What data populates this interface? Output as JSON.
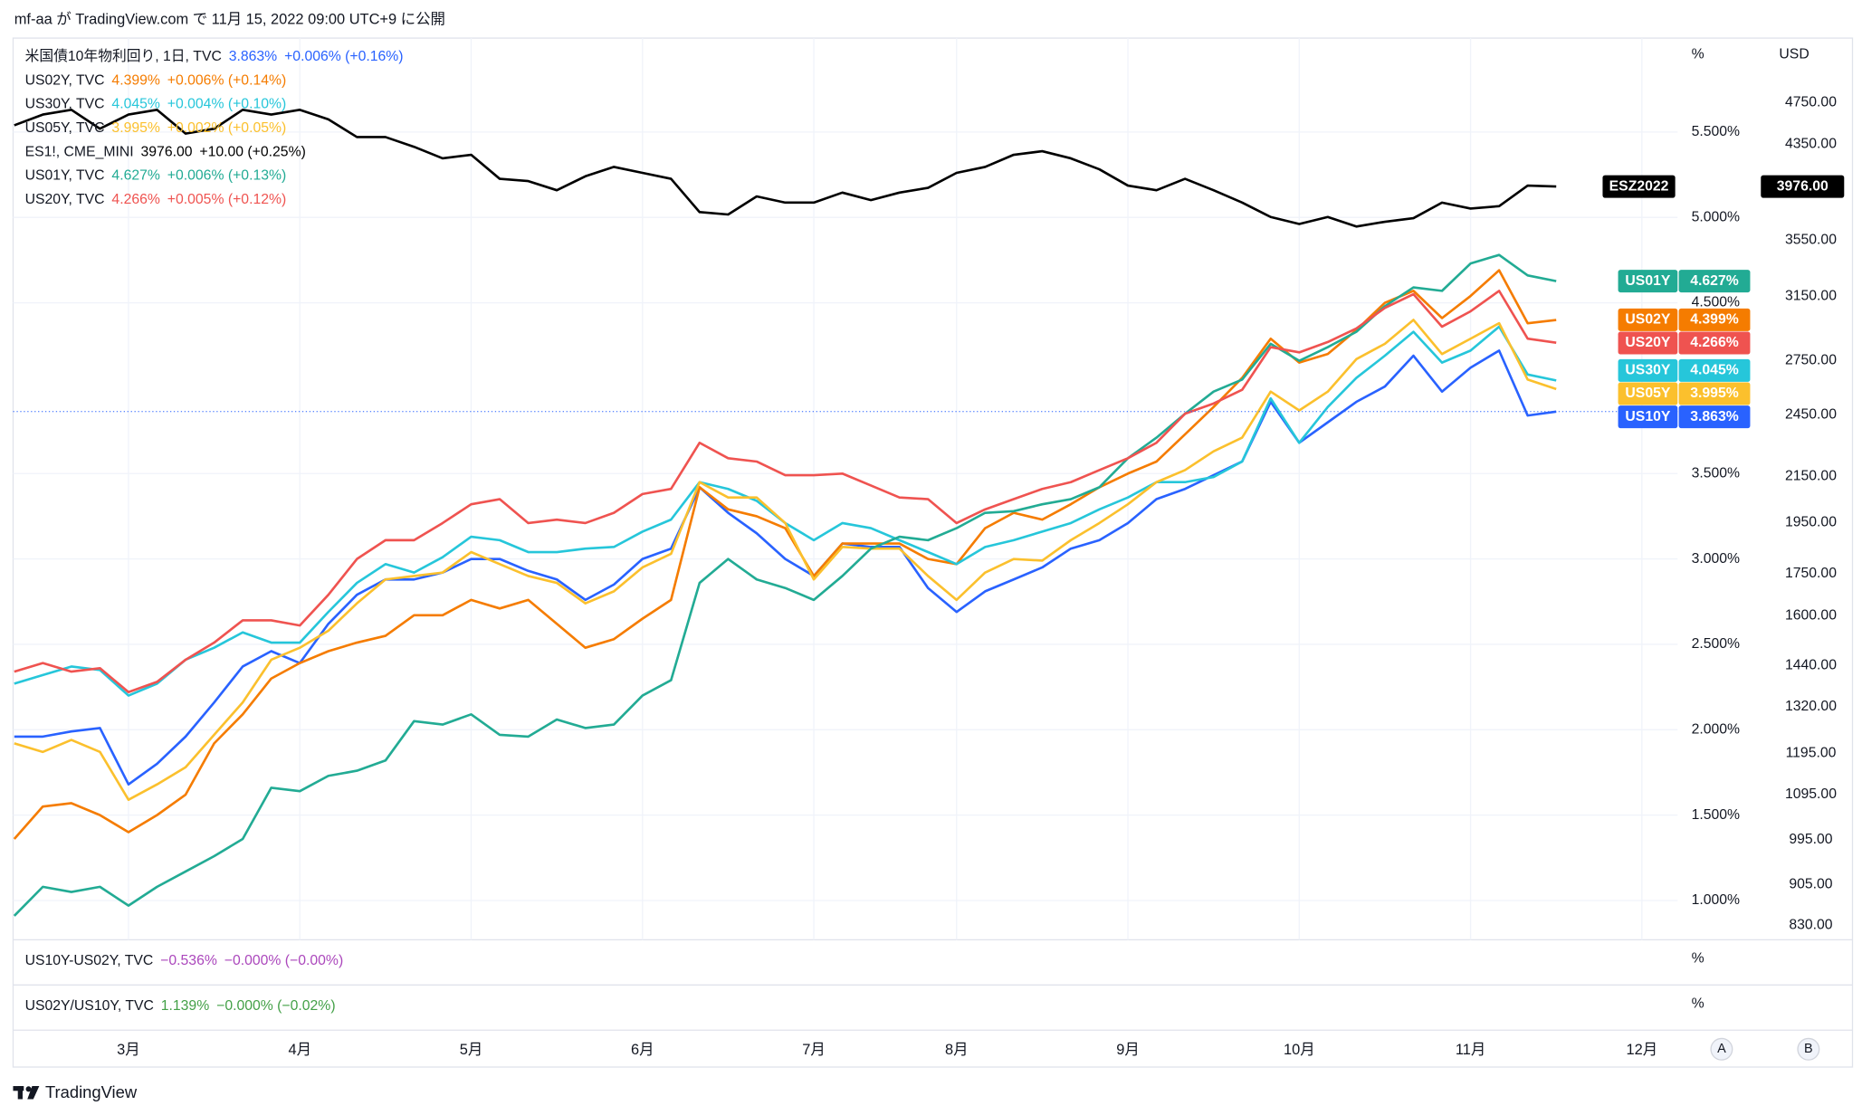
{
  "header": {
    "text": "mf-aa が TradingView.com で 11月 15, 2022 09:00 UTC+9 に公開"
  },
  "footer": {
    "brand": "TradingView"
  },
  "controls": {
    "auto": "A",
    "b": "B"
  },
  "chart_data": {
    "type": "line",
    "categories": [
      null,
      null,
      null,
      null,
      "3月",
      null,
      null,
      null,
      null,
      null,
      "4月",
      null,
      null,
      null,
      null,
      null,
      "5月",
      null,
      null,
      null,
      null,
      null,
      "6月",
      null,
      null,
      null,
      null,
      null,
      "7月",
      null,
      null,
      null,
      null,
      "8月",
      null,
      null,
      null,
      null,
      null,
      "9月",
      null,
      null,
      null,
      null,
      null,
      "10月",
      null,
      null,
      null,
      null,
      null,
      "11月",
      null,
      null,
      null,
      null,
      null,
      "12月"
    ],
    "series": [
      {
        "name": "US10Y",
        "legend": "米国債10年物利回り, 1日, TVC",
        "last": "3.863%",
        "change": "+0.006% (+0.16%)",
        "color": "#2962ff",
        "values": [
          1.96,
          1.96,
          1.99,
          2.01,
          1.68,
          1.8,
          1.96,
          2.16,
          2.37,
          2.46,
          2.39,
          2.62,
          2.79,
          2.88,
          2.88,
          2.92,
          3.0,
          3.0,
          2.93,
          2.88,
          2.76,
          2.85,
          3.0,
          3.06,
          3.42,
          3.27,
          3.15,
          3.0,
          2.9,
          3.09,
          3.07,
          3.07,
          2.83,
          2.69,
          2.81,
          2.88,
          2.95,
          3.06,
          3.11,
          3.21,
          3.35,
          3.41,
          3.49,
          3.57,
          3.92,
          3.68,
          3.8,
          3.92,
          4.01,
          4.19,
          3.98,
          4.12,
          4.22,
          3.84,
          3.863,
          null,
          null,
          null
        ]
      },
      {
        "name": "US02Y",
        "legend": "US02Y, TVC",
        "last": "4.399%",
        "change": "+0.006% (+0.14%)",
        "color": "#f57c00",
        "values": [
          1.36,
          1.55,
          1.57,
          1.5,
          1.4,
          1.5,
          1.62,
          1.92,
          2.09,
          2.3,
          2.39,
          2.46,
          2.51,
          2.55,
          2.67,
          2.67,
          2.76,
          2.71,
          2.76,
          2.62,
          2.48,
          2.53,
          2.65,
          2.76,
          3.42,
          3.29,
          3.25,
          3.18,
          2.9,
          3.09,
          3.09,
          3.09,
          3.0,
          2.97,
          3.18,
          3.27,
          3.23,
          3.32,
          3.42,
          3.5,
          3.57,
          3.73,
          3.89,
          4.06,
          4.29,
          4.15,
          4.2,
          4.34,
          4.5,
          4.57,
          4.41,
          4.54,
          4.69,
          4.38,
          4.399,
          null,
          null,
          null
        ]
      },
      {
        "name": "US30Y",
        "legend": "US30Y, TVC",
        "last": "4.045%",
        "change": "+0.004% (+0.10%)",
        "color": "#26c6da",
        "values": [
          2.27,
          2.32,
          2.37,
          2.35,
          2.2,
          2.27,
          2.41,
          2.48,
          2.57,
          2.51,
          2.51,
          2.69,
          2.86,
          2.97,
          2.92,
          3.01,
          3.13,
          3.11,
          3.04,
          3.04,
          3.06,
          3.07,
          3.16,
          3.23,
          3.45,
          3.41,
          3.34,
          3.21,
          3.11,
          3.21,
          3.18,
          3.11,
          3.04,
          2.97,
          3.07,
          3.11,
          3.16,
          3.21,
          3.29,
          3.36,
          3.45,
          3.45,
          3.48,
          3.57,
          3.94,
          3.68,
          3.89,
          4.06,
          4.19,
          4.33,
          4.15,
          4.22,
          4.36,
          4.08,
          4.045,
          null,
          null,
          null
        ]
      },
      {
        "name": "US05Y",
        "legend": "US05Y, TVC",
        "last": "3.995%",
        "change": "+0.002% (+0.05%)",
        "color": "#fbc02d",
        "values": [
          1.92,
          1.87,
          1.94,
          1.87,
          1.59,
          1.68,
          1.78,
          1.97,
          2.16,
          2.41,
          2.48,
          2.58,
          2.74,
          2.88,
          2.9,
          2.92,
          3.04,
          2.97,
          2.9,
          2.86,
          2.74,
          2.81,
          2.95,
          3.03,
          3.45,
          3.36,
          3.36,
          3.21,
          2.88,
          3.07,
          3.06,
          3.06,
          2.9,
          2.76,
          2.92,
          3.0,
          2.99,
          3.11,
          3.21,
          3.32,
          3.45,
          3.52,
          3.63,
          3.71,
          3.98,
          3.87,
          3.98,
          4.17,
          4.26,
          4.4,
          4.2,
          4.29,
          4.38,
          4.05,
          3.995,
          null,
          null,
          null
        ]
      },
      {
        "name": "ESZ2022",
        "legend": "ES1!, CME_MINI",
        "last": "3976.00",
        "change": "+10.00 (+0.25%)",
        "color": "#000000",
        "axis": "y2",
        "values": [
          4528,
          4632,
          4678,
          4495,
          4632,
          4678,
          4448,
          4495,
          4678,
          4632,
          4678,
          4585,
          4416,
          4416,
          4326,
          4221,
          4253,
          4042,
          4022,
          3945,
          4063,
          4145,
          4093,
          4042,
          3766,
          3747,
          3894,
          3843,
          3843,
          3925,
          3863,
          3925,
          3965,
          4093,
          4145,
          4253,
          4285,
          4221,
          4124,
          3984,
          3945,
          4042,
          3945,
          3843,
          3727,
          3672,
          3727,
          3653,
          3690,
          3718,
          3843,
          3795,
          3814,
          3984,
          3976,
          null,
          null,
          null
        ]
      },
      {
        "name": "US01Y",
        "legend": "US01Y, TVC",
        "last": "4.627%",
        "change": "+0.006% (+0.13%)",
        "color": "#22ab94",
        "values": [
          0.91,
          1.08,
          1.05,
          1.08,
          0.97,
          1.08,
          1.17,
          1.26,
          1.36,
          1.66,
          1.64,
          1.73,
          1.76,
          1.82,
          2.05,
          2.03,
          2.09,
          1.97,
          1.96,
          2.06,
          2.01,
          2.03,
          2.2,
          2.29,
          2.86,
          3.0,
          2.88,
          2.83,
          2.76,
          2.9,
          3.06,
          3.13,
          3.11,
          3.18,
          3.27,
          3.28,
          3.32,
          3.35,
          3.42,
          3.59,
          3.71,
          3.85,
          3.98,
          4.05,
          4.26,
          4.16,
          4.24,
          4.33,
          4.48,
          4.59,
          4.57,
          4.73,
          4.78,
          4.66,
          4.627,
          null,
          null,
          null
        ]
      },
      {
        "name": "US20Y",
        "legend": "US20Y, TVC",
        "last": "4.266%",
        "change": "+0.005% (+0.12%)",
        "color": "#ef5350",
        "values": [
          2.34,
          2.39,
          2.34,
          2.36,
          2.22,
          2.28,
          2.41,
          2.51,
          2.64,
          2.64,
          2.61,
          2.79,
          3.0,
          3.11,
          3.11,
          3.21,
          3.32,
          3.35,
          3.21,
          3.23,
          3.21,
          3.27,
          3.38,
          3.41,
          3.68,
          3.59,
          3.57,
          3.49,
          3.49,
          3.5,
          3.43,
          3.36,
          3.35,
          3.21,
          3.29,
          3.35,
          3.41,
          3.45,
          3.52,
          3.59,
          3.68,
          3.85,
          3.91,
          3.99,
          4.24,
          4.21,
          4.27,
          4.35,
          4.47,
          4.55,
          4.36,
          4.45,
          4.57,
          4.29,
          4.266,
          null,
          null,
          null
        ]
      }
    ],
    "y_unit": "%",
    "ylim": [
      0.77,
      6.05
    ],
    "yticks": [
      {
        "value": 5.5,
        "label": "5.500%"
      },
      {
        "value": 5,
        "label": "5.000%"
      },
      {
        "value": 4.5,
        "label": "4.500%"
      },
      {
        "value": 3.5,
        "label": "3.500%"
      },
      {
        "value": 3,
        "label": "3.000%"
      },
      {
        "value": 2.5,
        "label": "2.500%"
      },
      {
        "value": 2,
        "label": "2.000%"
      },
      {
        "value": 1.5,
        "label": "1.500%"
      },
      {
        "value": 1,
        "label": "1.000%"
      }
    ],
    "y2_unit": "USD",
    "y2_log": true,
    "y2lim": [
      805,
      5447
    ],
    "y2ticks": [
      {
        "value": 4750,
        "label": "4750.00"
      },
      {
        "value": 4350,
        "label": "4350.00"
      },
      {
        "value": 3550,
        "label": "3550.00"
      },
      {
        "value": 3150,
        "label": "3150.00"
      },
      {
        "value": 2750,
        "label": "2750.00"
      },
      {
        "value": 2450,
        "label": "2450.00"
      },
      {
        "value": 2150,
        "label": "2150.00"
      },
      {
        "value": 1950,
        "label": "1950.00"
      },
      {
        "value": 1750,
        "label": "1750.00"
      },
      {
        "value": 1600,
        "label": "1600.00"
      },
      {
        "value": 1440,
        "label": "1440.00"
      },
      {
        "value": 1320,
        "label": "1320.00"
      },
      {
        "value": 1195,
        "label": "1195.00"
      },
      {
        "value": 1095,
        "label": "1095.00"
      },
      {
        "value": 995,
        "label": "995.00"
      },
      {
        "value": 905,
        "label": "905.00"
      },
      {
        "value": 830,
        "label": "830.00"
      }
    ],
    "grid": true,
    "panes": [
      {
        "legend": "US10Y-US02Y, TVC",
        "last": "−0.536%",
        "change": "−0.000% (−0.00%)",
        "color": "#ab47bc",
        "unit": "%"
      },
      {
        "legend": "US02Y/US10Y, TVC",
        "last": "1.139%",
        "change": "−0.000% (−0.02%)",
        "color": "#43a047",
        "unit": "%"
      }
    ]
  }
}
